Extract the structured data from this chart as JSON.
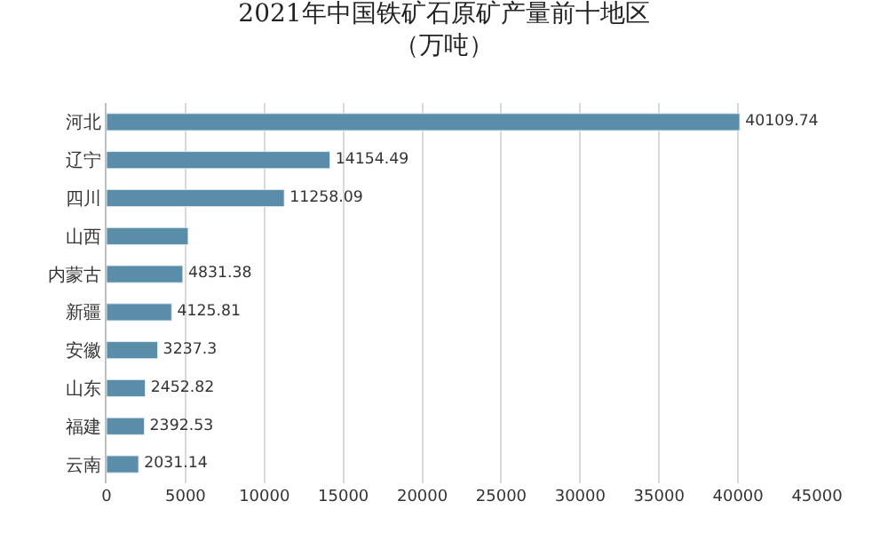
{
  "chart_data": {
    "type": "bar",
    "orientation": "horizontal",
    "title": "2021年中国铁矿石原矿产量前十地区",
    "subtitle": "（万吨）",
    "categories": [
      "河北",
      "辽宁",
      "四川",
      "山西",
      "内蒙古",
      "新疆",
      "安徽",
      "山东",
      "福建",
      "云南"
    ],
    "values": [
      40109.74,
      14154.49,
      11258.09,
      5170,
      4831.38,
      4125.81,
      3237.3,
      2452.82,
      2392.53,
      2031.14
    ],
    "value_labels": [
      "40109.74",
      "14154.49",
      "11258.09",
      null,
      "4831.38",
      "4125.81",
      "3237.3",
      "2452.82",
      "2392.53",
      "2031.14"
    ],
    "color": "#5a8ea8",
    "xlim": [
      0,
      45000
    ],
    "xticks": [
      0,
      5000,
      10000,
      15000,
      20000,
      25000,
      30000,
      35000,
      40000,
      45000
    ],
    "grid": "x",
    "legend": false
  }
}
